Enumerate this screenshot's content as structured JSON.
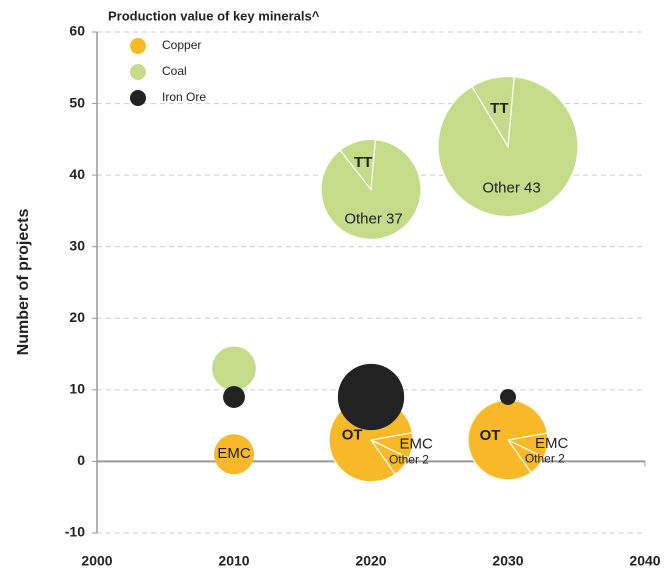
{
  "chart_data": {
    "type": "pie-bubble",
    "legend_title": "Production value of key minerals^",
    "y_label": "Number of projects",
    "xlim": [
      2000,
      2040
    ],
    "xticks": [
      2000,
      2010,
      2020,
      2030,
      2040
    ],
    "ylim": [
      -10,
      60
    ],
    "yticks": [
      -10,
      0,
      10,
      20,
      30,
      40,
      50,
      60
    ],
    "grid": true,
    "legend": "upper left",
    "series": [
      {
        "name": "Copper",
        "color": "#f7b928",
        "x": [
          2010,
          2020,
          2030
        ],
        "values": [
          1,
          3,
          3
        ],
        "sizes": [
          4,
          17.6,
          16
        ],
        "slices": [
          [
            {
              "label": "EMC",
              "share": 100
            }
          ],
          [
            {
              "label": "EMC",
              "share": 10
            },
            {
              "label": "Other 2",
              "share": 8
            },
            {
              "label": "OT",
              "share": 82
            }
          ],
          [
            {
              "label": "EMC",
              "share": 10
            },
            {
              "label": "Other 2",
              "share": 8
            },
            {
              "label": "OT",
              "share": 82
            }
          ]
        ]
      },
      {
        "name": "Coal",
        "color": "#c4dc8a",
        "x": [
          2010,
          2020,
          2030
        ],
        "values": [
          13,
          38,
          44
        ],
        "sizes": [
          4.8,
          25,
          49
        ],
        "slices": [
          null,
          [
            {
              "label": "Other 37",
              "share": 88
            },
            {
              "label": "TT",
              "share": 12
            }
          ],
          [
            {
              "label": "Other 43",
              "share": 90
            },
            {
              "label": "TT",
              "share": 10
            }
          ]
        ]
      },
      {
        "name": "Iron Ore",
        "color": "#222222",
        "x": [
          2010,
          2020,
          2030
        ],
        "values": [
          9,
          9,
          9
        ],
        "sizes": [
          1.2,
          11,
          0.64
        ],
        "slices": [
          null,
          null,
          null
        ]
      }
    ]
  }
}
